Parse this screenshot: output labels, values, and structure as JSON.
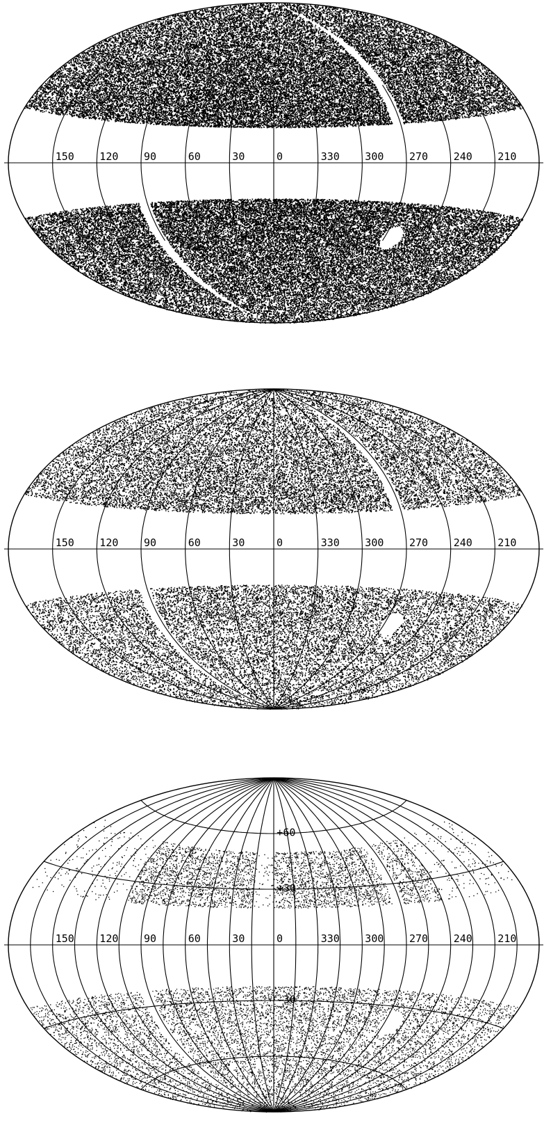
{
  "figure": {
    "projection": "aitoff",
    "panels": [
      {
        "id": "panel-1",
        "longitude_labels": [
          "210",
          "240",
          "270",
          "300",
          "330",
          "0",
          "30",
          "60",
          "90",
          "120",
          "150"
        ],
        "latitude_labels": [],
        "points_density": "high",
        "grid": "longitude-only-mid",
        "colors": {
          "ink": "#000000",
          "background": "#ffffff"
        }
      },
      {
        "id": "panel-2",
        "longitude_labels": [
          "210",
          "240",
          "270",
          "300",
          "330",
          "0",
          "30",
          "60",
          "90",
          "120",
          "150"
        ],
        "latitude_labels": [],
        "points_density": "medium",
        "grid": "longitude-full",
        "colors": {
          "ink": "#000000",
          "background": "#ffffff"
        }
      },
      {
        "id": "panel-3",
        "longitude_labels": [
          "210",
          "240",
          "270",
          "300",
          "330",
          "0",
          "30",
          "60",
          "90",
          "120",
          "150"
        ],
        "latitude_labels": [
          "+60",
          "+30",
          "-30"
        ],
        "points_density": "low",
        "grid": "full",
        "colors": {
          "ink": "#000000",
          "background": "#ffffff"
        }
      }
    ]
  }
}
